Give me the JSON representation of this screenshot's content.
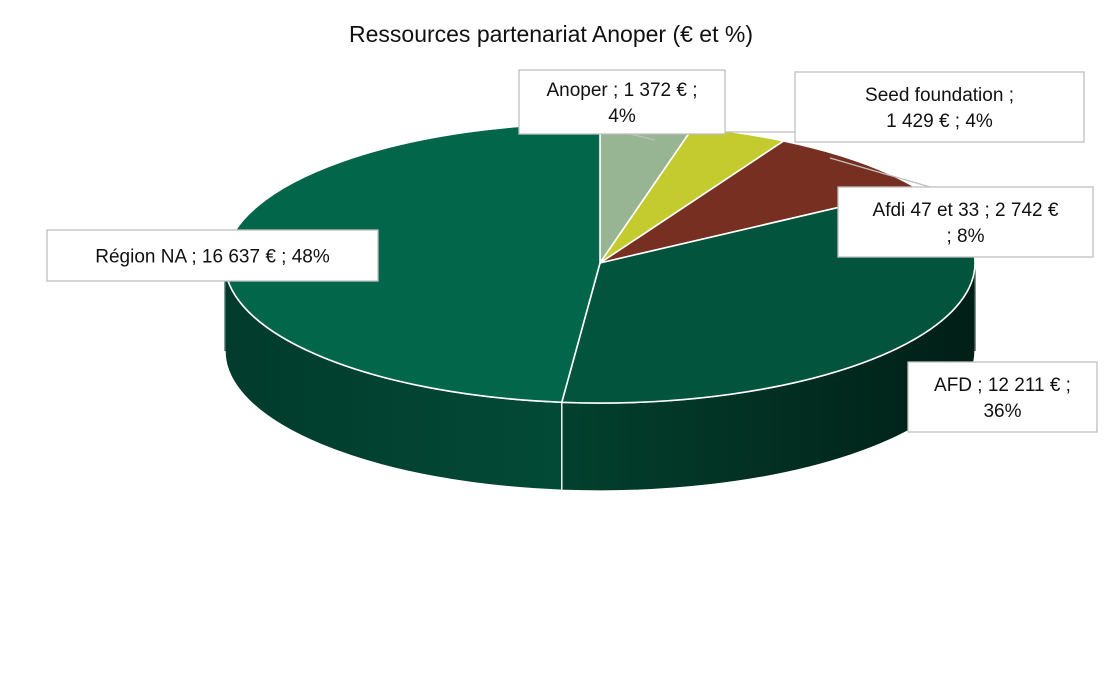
{
  "chart_data": {
    "type": "pie",
    "title": "Ressources partenariat Anoper (€ et %)",
    "unit": "€",
    "legend": "none",
    "slices": [
      {
        "name": "Anoper",
        "value": 1372,
        "percent": 4,
        "color": "#97b593",
        "label_lines": [
          "Anoper ;  1 372 € ;",
          "4%"
        ]
      },
      {
        "name": "Seed foundation",
        "value": 1429,
        "percent": 4,
        "color": "#c4cb2f",
        "label_lines": [
          "Seed foundation ;",
          "1 429 € ; 4%"
        ]
      },
      {
        "name": "Afdi 47 et 33",
        "value": 2742,
        "percent": 8,
        "color": "#772f22",
        "label_lines": [
          "Afdi 47 et 33 ;  2 742 €",
          "; 8%"
        ]
      },
      {
        "name": "AFD",
        "value": 12211,
        "percent": 36,
        "color": "#02553c",
        "label_lines": [
          "AFD  ;  12 211 € ;",
          "36%"
        ]
      },
      {
        "name": "Région NA",
        "value": 16637,
        "percent": 48,
        "color": "#02664b",
        "label_lines": [
          "Région NA  ;  16 637 € ; 48%"
        ]
      }
    ]
  }
}
